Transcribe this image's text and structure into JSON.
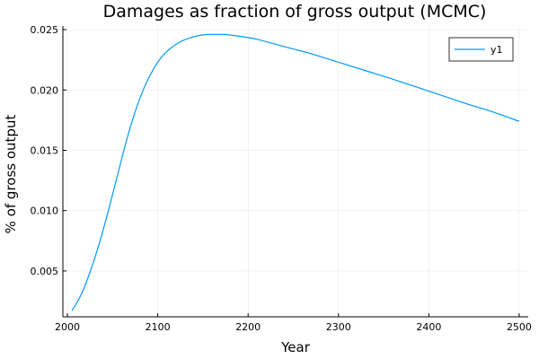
{
  "chart_data": {
    "type": "line",
    "title": "Damages as fraction of gross output (MCMC)",
    "xlabel": "Year",
    "ylabel": "% of gross output",
    "xlim": [
      1995,
      2510
    ],
    "ylim": [
      0.0012,
      0.0253
    ],
    "x_ticks": [
      2000,
      2100,
      2200,
      2300,
      2400,
      2500
    ],
    "y_ticks": [
      0.005,
      0.01,
      0.015,
      0.02,
      0.025
    ],
    "x_tick_labels": [
      "2000",
      "2100",
      "2200",
      "2300",
      "2400",
      "2500"
    ],
    "y_tick_labels": [
      "0.005",
      "0.010",
      "0.015",
      "0.020",
      "0.025"
    ],
    "grid": true,
    "legend_position": "top-right",
    "series": [
      {
        "name": "y1",
        "color": "#009AFA",
        "x": [
          2005,
          2015,
          2025,
          2035,
          2045,
          2055,
          2065,
          2075,
          2085,
          2095,
          2105,
          2115,
          2125,
          2135,
          2145,
          2155,
          2165,
          2175,
          2185,
          2195,
          2210,
          2230,
          2250,
          2270,
          2300,
          2330,
          2360,
          2400,
          2440,
          2470,
          2500
        ],
        "y": [
          0.0017,
          0.003,
          0.0049,
          0.0072,
          0.0099,
          0.0128,
          0.0157,
          0.0182,
          0.0202,
          0.0217,
          0.0228,
          0.0235,
          0.024,
          0.0243,
          0.0245,
          0.0246,
          0.0246,
          0.0246,
          0.0245,
          0.0244,
          0.0242,
          0.0238,
          0.0234,
          0.023,
          0.0223,
          0.0216,
          0.0209,
          0.0199,
          0.0189,
          0.0182,
          0.0174
        ]
      }
    ]
  }
}
